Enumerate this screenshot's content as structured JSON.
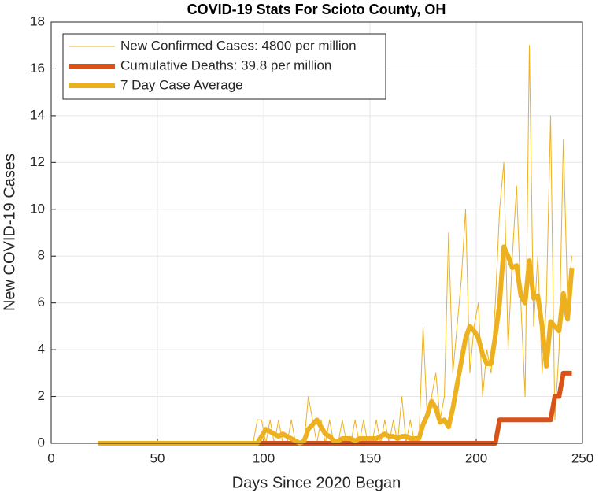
{
  "chart_data": {
    "type": "line",
    "title": "COVID-19 Stats For Scioto County, OH",
    "xlabel": "Days Since 2020 Began",
    "ylabel": "New COVID-19 Cases",
    "x": [
      22,
      95,
      97,
      99,
      101,
      103,
      105,
      107,
      109,
      111,
      113,
      115,
      117,
      119,
      121,
      123,
      125,
      127,
      129,
      131,
      133,
      135,
      137,
      139,
      141,
      143,
      145,
      147,
      149,
      151,
      153,
      155,
      157,
      159,
      161,
      163,
      165,
      167,
      169,
      171,
      173,
      175,
      177,
      179,
      181,
      183,
      185,
      187,
      189,
      191,
      193,
      195,
      197,
      199,
      201,
      203,
      205,
      207,
      209,
      211,
      213,
      215,
      217,
      219,
      221,
      223,
      225,
      227,
      229,
      231,
      233,
      235,
      237,
      239,
      241,
      243,
      245
    ],
    "series": [
      {
        "name": "New Confirmed Cases: 4800 per million",
        "color": "#edb120",
        "width": 1,
        "values": [
          0,
          0,
          1,
          1,
          0,
          1,
          0,
          1,
          0,
          0,
          1,
          0,
          0,
          0,
          2,
          1,
          0,
          1,
          0,
          1,
          0,
          0,
          1,
          0,
          0,
          1,
          0,
          1,
          0,
          0,
          1,
          0,
          1,
          0,
          1,
          0,
          2,
          0,
          1,
          0,
          0,
          5,
          1,
          2,
          3,
          1,
          2,
          9,
          3,
          5,
          7,
          10,
          3,
          5,
          6,
          2,
          4,
          3,
          6,
          10,
          12,
          4,
          8,
          11,
          6,
          2,
          17,
          5,
          8,
          3,
          6,
          14,
          1,
          4,
          13,
          6,
          8
        ]
      },
      {
        "name": "Cumulative Deaths: 39.8 per million",
        "color": "#d95319",
        "width": 6,
        "values": [
          0,
          0,
          0,
          0,
          0,
          0,
          0,
          0,
          0,
          0,
          0,
          0,
          0,
          0,
          0,
          0,
          0,
          0,
          0,
          0,
          0,
          0,
          0,
          0,
          0,
          0,
          0,
          0,
          0,
          0,
          0,
          0,
          0,
          0,
          0,
          0,
          0,
          0,
          0,
          0,
          0,
          0,
          0,
          0,
          0,
          0,
          0,
          0,
          0,
          0,
          0,
          0,
          0,
          0,
          0,
          0,
          0,
          0,
          0,
          1,
          1,
          1,
          1,
          1,
          1,
          1,
          1,
          1,
          1,
          1,
          1,
          1,
          2,
          2,
          3,
          3,
          3
        ]
      },
      {
        "name": "7 Day Case Average",
        "color": "#edb120",
        "width": 6,
        "values": [
          0,
          0,
          0,
          0.3,
          0.6,
          0.5,
          0.4,
          0.3,
          0.4,
          0.3,
          0.2,
          0.1,
          0,
          0.1,
          0.6,
          0.8,
          1,
          0.7,
          0.4,
          0.3,
          0.1,
          0.1,
          0.2,
          0.2,
          0.2,
          0.1,
          0.2,
          0.2,
          0.2,
          0.2,
          0.2,
          0.3,
          0.4,
          0.3,
          0.3,
          0.2,
          0.3,
          0.3,
          0.2,
          0.2,
          0.2,
          0.8,
          1.2,
          1.8,
          1.5,
          0.9,
          1,
          0.7,
          1.5,
          2.5,
          3.5,
          4.5,
          5,
          4.8,
          4.5,
          3.8,
          3.4,
          3.4,
          4.6,
          6,
          8.4,
          8,
          7.5,
          7.6,
          6.3,
          6,
          7.8,
          6.2,
          6.3,
          5,
          3.3,
          5.2,
          5,
          4.8,
          6.4,
          5.3,
          7.5
        ]
      }
    ],
    "xlim": [
      0,
      250
    ],
    "xticks": [
      0,
      50,
      100,
      150,
      200,
      250
    ],
    "ylim": [
      0,
      18
    ],
    "yticks": [
      0,
      2,
      4,
      6,
      8,
      10,
      12,
      14,
      16,
      18
    ],
    "grid": true,
    "legend": "upper left"
  }
}
